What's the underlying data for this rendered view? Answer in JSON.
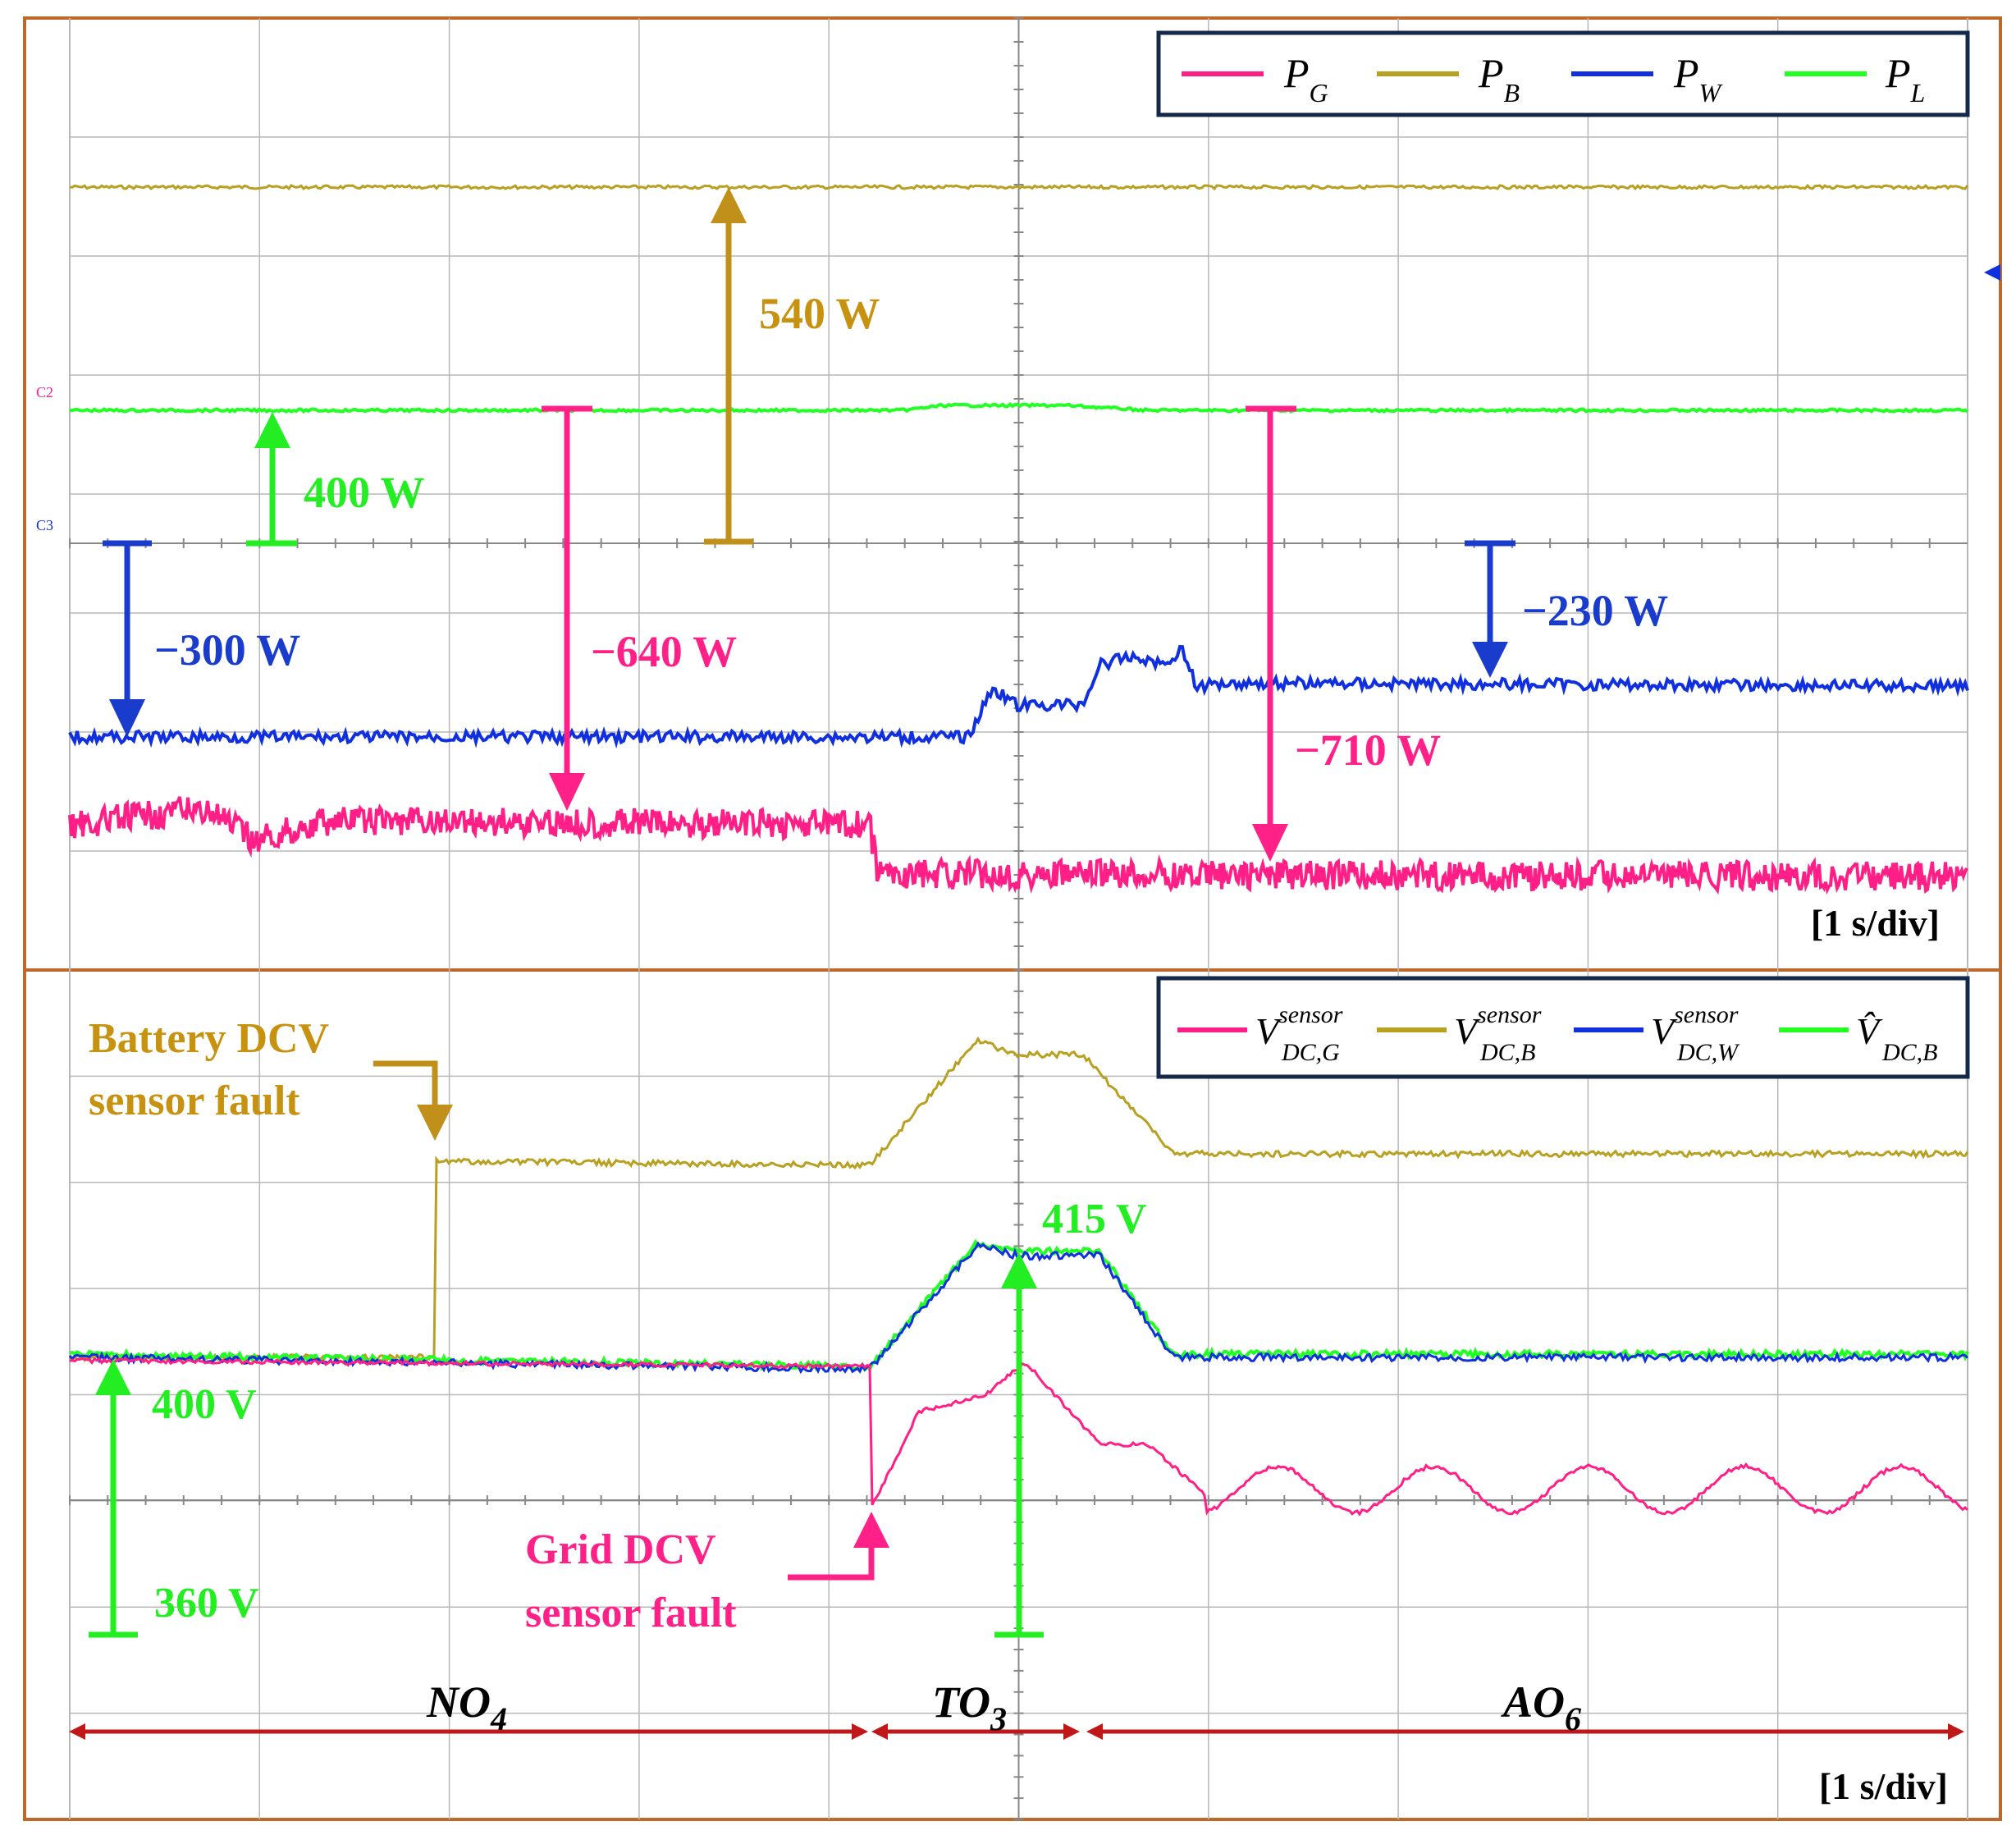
{
  "colors": {
    "grid": "#4a4a4a",
    "frame": "#c0672a",
    "grid_line": "#b8b8b8",
    "pink": "#ff1f86",
    "gold": "#b8a020",
    "gold_arrow": "#c0901a",
    "blue": "#1030e0",
    "green": "#22ff22",
    "darkred": "#c01818",
    "label_green": "#22ee22",
    "label_blue": "#1a3ccc",
    "label_pink": "#ff2088",
    "label_gold": "#c7920f"
  },
  "top_panel": {
    "legend": [
      {
        "main": "P",
        "sub": "G",
        "color": "#ff1f86"
      },
      {
        "main": "P",
        "sub": "B",
        "color": "#b8a020"
      },
      {
        "main": "P",
        "sub": "W",
        "color": "#1030e0"
      },
      {
        "main": "P",
        "sub": "L",
        "color": "#22ff22"
      }
    ],
    "timebase": "[1 s/div]",
    "channel_markers": [
      "C2",
      "C3"
    ],
    "annotations": {
      "pb": "540 W",
      "pl": "400 W",
      "pw1": "−300 W",
      "pg1": "−640 W",
      "pw2": "−230 W",
      "pg2": "−710 W"
    }
  },
  "bottom_panel": {
    "legend": [
      {
        "main": "V",
        "sup": "sensor",
        "sub": "DC,G",
        "color": "#ff1f86"
      },
      {
        "main": "V",
        "sup": "sensor",
        "sub": "DC,B",
        "color": "#b8a020"
      },
      {
        "main": "V",
        "sup": "sensor",
        "sub": "DC,W",
        "color": "#1030e0"
      },
      {
        "main": "V̂",
        "sup": "",
        "sub": "DC,B",
        "color": "#22ff22"
      }
    ],
    "timebase": "[1 s/div]",
    "annotations": {
      "battery_fault_line1": "Battery DCV",
      "battery_fault_line2": "sensor fault",
      "grid_fault_line1": "Grid DCV",
      "grid_fault_line2": "sensor fault",
      "v415": "415 V",
      "v400": "400 V",
      "v360": "360 V"
    },
    "modes": [
      {
        "main": "NO",
        "sub": "4"
      },
      {
        "main": "TO",
        "sub": "3"
      },
      {
        "main": "AO",
        "sub": "6"
      }
    ]
  },
  "chart_data": [
    {
      "type": "line",
      "panel": "top",
      "xlabel": "[1 s/div]",
      "x_divisions": 10,
      "series": [
        {
          "name": "P_G",
          "color": "#ff1f86",
          "segments": [
            {
              "x_div": [
                0,
                4.2
              ],
              "value_W": -640
            },
            {
              "x_div": [
                4.3,
                10
              ],
              "value_W": -710
            }
          ]
        },
        {
          "name": "P_B",
          "color": "#b8a020",
          "segments": [
            {
              "x_div": [
                0,
                10
              ],
              "value_W": 540
            }
          ]
        },
        {
          "name": "P_W",
          "color": "#1030e0",
          "segments": [
            {
              "x_div": [
                0,
                4.8
              ],
              "value_W": -300
            },
            {
              "x_div": [
                5.9,
                10
              ],
              "value_W": -230
            }
          ]
        },
        {
          "name": "P_L",
          "color": "#22ff22",
          "segments": [
            {
              "x_div": [
                0,
                10
              ],
              "value_W": 400
            }
          ]
        }
      ],
      "annotations": [
        "540 W",
        "400 W",
        "−300 W",
        "−640 W",
        "−230 W",
        "−710 W"
      ]
    },
    {
      "type": "line",
      "panel": "bottom",
      "xlabel": "[1 s/div]",
      "x_divisions": 10,
      "series": [
        {
          "name": "V_DC,G sensor",
          "color": "#ff1f86"
        },
        {
          "name": "V_DC,B sensor",
          "color": "#b8a020"
        },
        {
          "name": "V_DC,W sensor",
          "color": "#1030e0"
        },
        {
          "name": "V̂_DC,B",
          "color": "#22ff22"
        }
      ],
      "key_values_V": {
        "nominal": 400,
        "peak": 415,
        "reference": 360
      },
      "events": [
        {
          "label": "Battery DCV sensor fault",
          "x_div": 1.95
        },
        {
          "label": "Grid DCV sensor fault",
          "x_div": 4.2
        }
      ],
      "modes": [
        {
          "label": "NO4",
          "x_div": [
            0,
            4.2
          ]
        },
        {
          "label": "TO3",
          "x_div": [
            4.2,
            5.35
          ]
        },
        {
          "label": "AO6",
          "x_div": [
            5.35,
            10
          ]
        }
      ]
    }
  ]
}
